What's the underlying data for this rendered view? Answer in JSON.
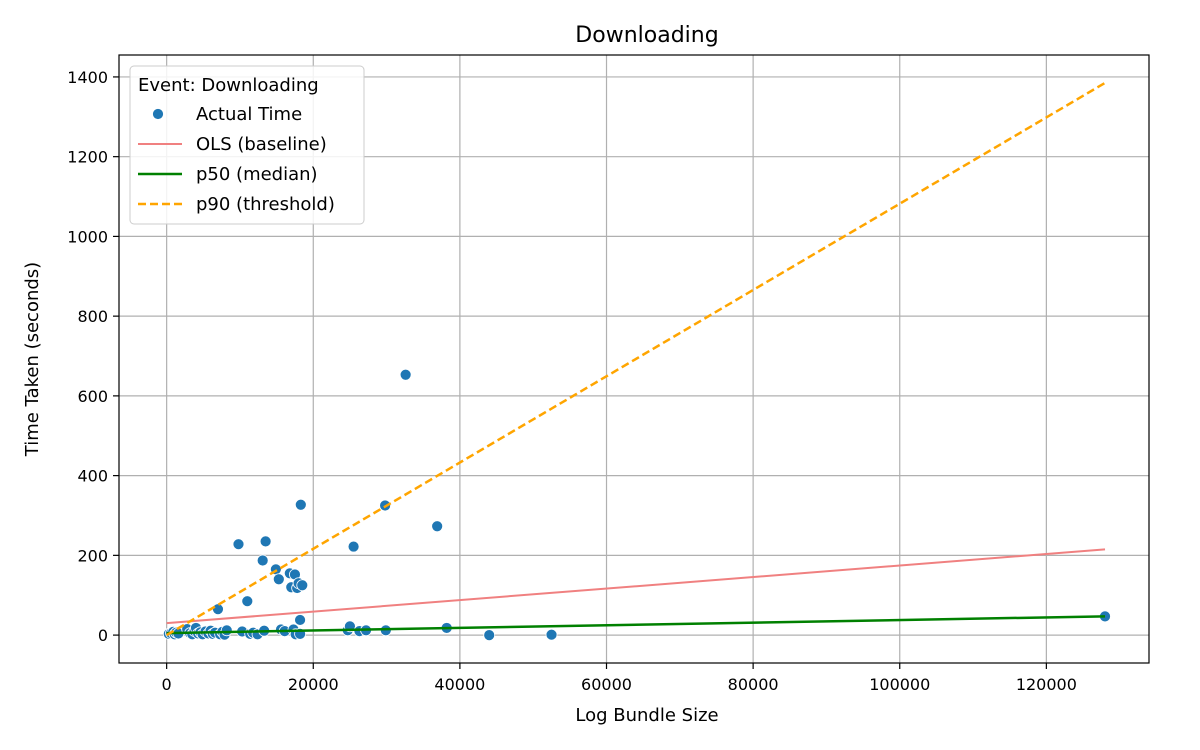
{
  "chart_data": {
    "type": "scatter",
    "title": "Downloading",
    "xlabel": "Log Bundle Size",
    "ylabel": "Time Taken (seconds)",
    "xlim": [
      -6500,
      134000
    ],
    "ylim": [
      -70,
      1455
    ],
    "x_ticks": [
      0,
      20000,
      40000,
      60000,
      80000,
      100000,
      120000
    ],
    "y_ticks": [
      0,
      200,
      400,
      600,
      800,
      1000,
      1200,
      1400
    ],
    "grid": true,
    "legend": {
      "title": "Event: Downloading",
      "placement": "top-left",
      "entries": [
        "Actual Time",
        "OLS (baseline)",
        "p50 (median)",
        "p90 (threshold)"
      ]
    },
    "colors": {
      "scatter": "#1f77b4",
      "ols": "#f08080",
      "p50": "#008000",
      "p90": "#ffa500"
    },
    "series": [
      {
        "name": "Actual Time",
        "kind": "scatter",
        "points": [
          [
            300,
            3
          ],
          [
            600,
            5
          ],
          [
            900,
            8
          ],
          [
            1100,
            2
          ],
          [
            1300,
            6
          ],
          [
            1600,
            4
          ],
          [
            2800,
            15
          ],
          [
            3200,
            5
          ],
          [
            3500,
            2
          ],
          [
            3800,
            10
          ],
          [
            4000,
            18
          ],
          [
            4300,
            4
          ],
          [
            4600,
            7
          ],
          [
            4900,
            2
          ],
          [
            5300,
            9
          ],
          [
            5700,
            4
          ],
          [
            6000,
            11
          ],
          [
            6300,
            3
          ],
          [
            6600,
            6
          ],
          [
            7000,
            65
          ],
          [
            7300,
            2
          ],
          [
            7600,
            8
          ],
          [
            7900,
            1
          ],
          [
            8200,
            12
          ],
          [
            9800,
            228
          ],
          [
            10300,
            9
          ],
          [
            11000,
            85
          ],
          [
            11400,
            3
          ],
          [
            11800,
            6
          ],
          [
            12400,
            2
          ],
          [
            13100,
            187
          ],
          [
            13300,
            11
          ],
          [
            13500,
            235
          ],
          [
            14900,
            165
          ],
          [
            15300,
            140
          ],
          [
            15600,
            14
          ],
          [
            16100,
            10
          ],
          [
            16800,
            155
          ],
          [
            17000,
            120
          ],
          [
            17300,
            14
          ],
          [
            17500,
            152
          ],
          [
            17800,
            118
          ],
          [
            18000,
            130
          ],
          [
            18200,
            38
          ],
          [
            18300,
            327
          ],
          [
            18500,
            125
          ],
          [
            17600,
            2
          ],
          [
            18200,
            3
          ],
          [
            24700,
            12
          ],
          [
            25000,
            22
          ],
          [
            25500,
            222
          ],
          [
            26300,
            10
          ],
          [
            27200,
            12
          ],
          [
            29800,
            325
          ],
          [
            29900,
            12
          ],
          [
            32600,
            653
          ],
          [
            36900,
            273
          ],
          [
            38200,
            18
          ],
          [
            44000,
            0
          ],
          [
            52500,
            1
          ],
          [
            128000,
            47
          ]
        ]
      },
      {
        "name": "OLS (baseline)",
        "kind": "line",
        "x": [
          0,
          128000
        ],
        "y": [
          30,
          215
        ]
      },
      {
        "name": "p50 (median)",
        "kind": "line",
        "x": [
          0,
          128000
        ],
        "y": [
          5,
          47
        ]
      },
      {
        "name": "p90 (threshold)",
        "kind": "line",
        "x": [
          0,
          128000
        ],
        "y": [
          0,
          1385
        ],
        "dashed": true
      }
    ]
  }
}
